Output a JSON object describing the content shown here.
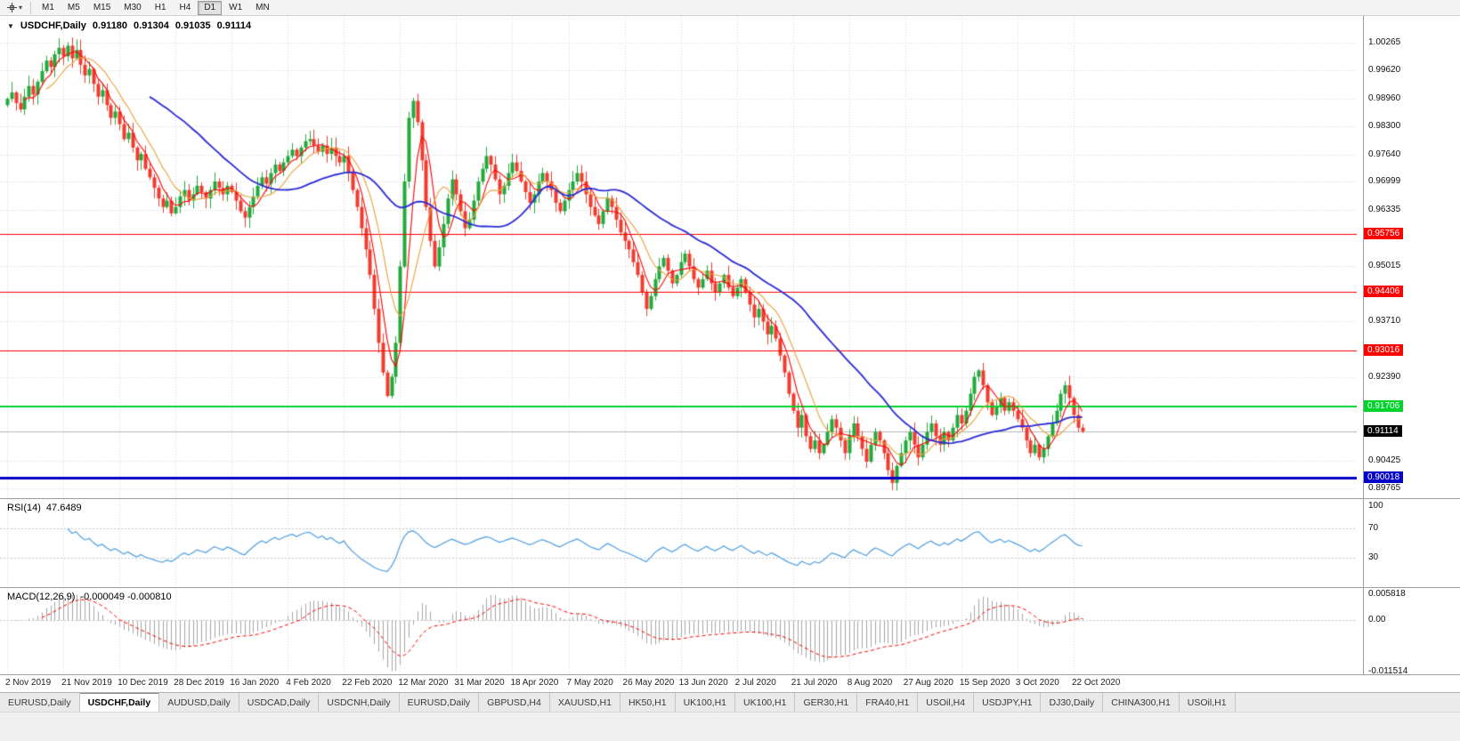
{
  "toolbar": {
    "periods": [
      "M1",
      "M5",
      "M15",
      "M30",
      "H1",
      "H4",
      "D1",
      "W1",
      "MN"
    ],
    "active_period": "D1",
    "caret": "▾"
  },
  "chart": {
    "marker": "▼",
    "title": "USDCHF,Daily",
    "ohlc": {
      "open": "0.91180",
      "high": "0.91304",
      "low": "0.91035",
      "close": "0.91114"
    },
    "price_axis": {
      "max": 1.009,
      "min": 0.8954,
      "ticks": [
        "1.00265",
        "0.99620",
        "0.98960",
        "0.98300",
        "0.97640",
        "0.96999",
        "0.96335",
        "0.95015",
        "0.93710",
        "0.92390",
        "0.90425",
        "0.89765"
      ]
    },
    "levels": [
      {
        "label": "0.95756",
        "price": 0.95756,
        "color": "#FF0000",
        "width": 1
      },
      {
        "label": "0.94406",
        "price": 0.94406,
        "color": "#FF0000",
        "width": 1
      },
      {
        "label": "0.93016",
        "price": 0.93016,
        "color": "#FF0000",
        "width": 1
      },
      {
        "label": "0.91706",
        "price": 0.91706,
        "color": "#00D22C",
        "width": 2
      },
      {
        "label": "0.90018",
        "price": 0.90018,
        "color": "#0000C8",
        "width": 3
      }
    ],
    "current_price": {
      "label": "0.91114",
      "price": 0.91114,
      "color": "#000000"
    },
    "colors": {
      "up": "#23A93C",
      "down": "#F23B2E",
      "ma_fast": "#FF0000",
      "ma_mid": "#E8A33B",
      "ma_slow": "#2B2BD6",
      "grid": "#D9D9D9",
      "current_line": "#B8B8B8"
    }
  },
  "chart_data": {
    "type": "candlestick",
    "symbol": "USDCHF",
    "timeframe": "Daily",
    "ylim": [
      0.8954,
      1.009
    ],
    "x_labels": [
      "2 Nov 2019",
      "21 Nov 2019",
      "10 Dec 2019",
      "28 Dec 2019",
      "16 Jan 2020",
      "4 Feb 2020",
      "22 Feb 2020",
      "12 Mar 2020",
      "31 Mar 2020",
      "18 Apr 2020",
      "7 May 2020",
      "26 May 2020",
      "13 Jun 2020",
      "2 Jul 2020",
      "21 Jul 2020",
      "8 Aug 2020",
      "27 Aug 2020",
      "15 Sep 2020",
      "3 Oct 2020",
      "22 Oct 2020"
    ],
    "x_label_indices": [
      0,
      13,
      26,
      39,
      52,
      65,
      78,
      91,
      104,
      117,
      130,
      143,
      156,
      169,
      182,
      195,
      208,
      221,
      234,
      247
    ],
    "closes": [
      0.9895,
      0.991,
      0.9885,
      0.987,
      0.99,
      0.9925,
      0.9905,
      0.9935,
      0.996,
      0.9985,
      0.997,
      1.0,
      1.0015,
      0.9995,
      1.002,
      0.999,
      1.001,
      0.9975,
      0.995,
      0.9965,
      0.993,
      0.99,
      0.9915,
      0.988,
      0.985,
      0.9865,
      0.9835,
      0.98,
      0.9815,
      0.978,
      0.975,
      0.9765,
      0.973,
      0.971,
      0.9685,
      0.966,
      0.964,
      0.9655,
      0.9625,
      0.964,
      0.9665,
      0.968,
      0.9655,
      0.967,
      0.969,
      0.9675,
      0.966,
      0.968,
      0.97,
      0.9685,
      0.967,
      0.969,
      0.9675,
      0.9655,
      0.963,
      0.9615,
      0.964,
      0.9665,
      0.969,
      0.971,
      0.9695,
      0.972,
      0.974,
      0.9725,
      0.9745,
      0.976,
      0.9775,
      0.976,
      0.978,
      0.9795,
      0.98,
      0.9785,
      0.977,
      0.9785,
      0.9765,
      0.978,
      0.976,
      0.9745,
      0.976,
      0.972,
      0.968,
      0.964,
      0.959,
      0.954,
      0.948,
      0.94,
      0.932,
      0.925,
      0.9195,
      0.924,
      0.932,
      0.95,
      0.97,
      0.985,
      0.989,
      0.984,
      0.975,
      0.964,
      0.956,
      0.95,
      0.9545,
      0.96,
      0.966,
      0.9705,
      0.967,
      0.963,
      0.959,
      0.961,
      0.9655,
      0.97,
      0.973,
      0.976,
      0.974,
      0.9705,
      0.967,
      0.969,
      0.972,
      0.9745,
      0.9725,
      0.97,
      0.9675,
      0.965,
      0.967,
      0.97,
      0.972,
      0.97,
      0.968,
      0.965,
      0.963,
      0.9655,
      0.968,
      0.97,
      0.972,
      0.97,
      0.967,
      0.964,
      0.962,
      0.96,
      0.963,
      0.966,
      0.964,
      0.961,
      0.958,
      0.956,
      0.954,
      0.951,
      0.948,
      0.944,
      0.94,
      0.943,
      0.947,
      0.95,
      0.952,
      0.949,
      0.946,
      0.948,
      0.951,
      0.953,
      0.95,
      0.947,
      0.945,
      0.947,
      0.949,
      0.946,
      0.944,
      0.946,
      0.948,
      0.945,
      0.943,
      0.945,
      0.947,
      0.944,
      0.941,
      0.938,
      0.94,
      0.937,
      0.934,
      0.936,
      0.933,
      0.929,
      0.925,
      0.92,
      0.916,
      0.912,
      0.915,
      0.91,
      0.907,
      0.909,
      0.906,
      0.908,
      0.911,
      0.914,
      0.912,
      0.909,
      0.906,
      0.91,
      0.913,
      0.91,
      0.907,
      0.904,
      0.908,
      0.911,
      0.909,
      0.906,
      0.902,
      0.899,
      0.903,
      0.906,
      0.909,
      0.911,
      0.908,
      0.905,
      0.908,
      0.911,
      0.913,
      0.91,
      0.908,
      0.911,
      0.909,
      0.912,
      0.915,
      0.913,
      0.916,
      0.92,
      0.924,
      0.9255,
      0.922,
      0.918,
      0.915,
      0.917,
      0.919,
      0.916,
      0.918,
      0.916,
      0.914,
      0.912,
      0.909,
      0.906,
      0.908,
      0.905,
      0.907,
      0.91,
      0.913,
      0.916,
      0.92,
      0.922,
      0.919,
      0.915,
      0.912,
      0.91114
    ],
    "moving_averages": [
      {
        "name": "fast",
        "period": 5,
        "color": "#FF0000"
      },
      {
        "name": "medium",
        "period": 10,
        "color": "#E8A33B"
      },
      {
        "name": "slow",
        "period": 34,
        "color": "#2B2BD6"
      }
    ]
  },
  "rsi": {
    "name": "RSI(14)",
    "value": "47.6489",
    "period": 14,
    "axis_labels": [
      "100",
      "70",
      "30"
    ],
    "levels": [
      70,
      30
    ],
    "color": "#4D9EE0"
  },
  "macd": {
    "name": "MACD(12,26,9)",
    "values": "-0.000049 -0.000810",
    "axis_labels": [
      "0.005818",
      "0.00",
      "-0.011514"
    ],
    "axis_values": [
      0.005818,
      0,
      -0.011514
    ],
    "hist_color": "#A6A6A6",
    "signal_color": "#FF0000"
  },
  "tabs": {
    "active_index": 1,
    "labels": [
      "EURUSD,Daily",
      "USDCHF,Daily",
      "AUDUSD,Daily",
      "USDCAD,Daily",
      "USDCNH,Daily",
      "EURUSD,Daily",
      "GBPUSD,H4",
      "XAUUSD,H1",
      "HK50,H1",
      "UK100,H1",
      "UK100,H1",
      "GER30,H1",
      "FRA40,H1",
      "USOil,H4",
      "USDJPY,H1",
      "DJ30,Daily",
      "CHINA300,H1",
      "USOil,H1"
    ]
  }
}
